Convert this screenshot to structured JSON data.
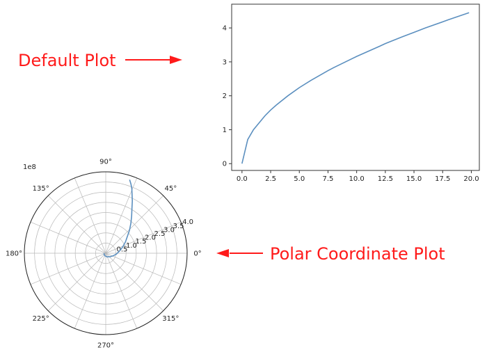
{
  "annotations": {
    "default_label": "Default Plot",
    "polar_label": "Polar Coordinate Plot",
    "arrow_color": "#ff1a1a"
  },
  "chart_data": [
    {
      "type": "line",
      "panel": "default",
      "color": "#5b8fbf",
      "x": [
        0,
        0.5,
        1,
        2,
        2.5,
        3,
        4,
        5,
        6,
        7.5,
        8,
        10,
        12,
        12.5,
        14,
        15,
        16,
        17.5,
        18,
        19.8
      ],
      "y": [
        0,
        0.71,
        1.0,
        1.41,
        1.58,
        1.73,
        2.0,
        2.24,
        2.45,
        2.74,
        2.83,
        3.16,
        3.46,
        3.54,
        3.74,
        3.87,
        4.0,
        4.18,
        4.24,
        4.45
      ],
      "xlim": [
        -0.9,
        20.7
      ],
      "ylim": [
        -0.2,
        4.7
      ],
      "xticks": [
        "0.0",
        "2.5",
        "5.0",
        "7.5",
        "10.0",
        "12.5",
        "15.0",
        "17.5",
        "20.0"
      ],
      "yticks": [
        "0",
        "1",
        "2",
        "3",
        "4"
      ]
    },
    {
      "type": "line",
      "panel": "polar",
      "color": "#5b8fbf",
      "offset_label": "1e8",
      "rmax": 4.0,
      "r_ticks": [
        "0.5",
        "1.0",
        "1.5",
        "2.0",
        "2.5",
        "3.0",
        "3.5",
        "4.0"
      ],
      "theta_ticks": [
        "0°",
        "45°",
        "90°",
        "135°",
        "180°",
        "225°",
        "270°",
        "315°"
      ],
      "theta_deg": [
        180,
        200,
        230,
        260,
        290,
        320,
        340,
        355,
        10,
        20,
        30,
        38,
        44,
        50,
        55,
        60,
        63,
        66,
        68,
        70,
        72
      ],
      "r": [
        0.08,
        0.09,
        0.11,
        0.14,
        0.19,
        0.27,
        0.38,
        0.52,
        0.7,
        0.88,
        1.12,
        1.35,
        1.62,
        1.92,
        2.22,
        2.58,
        2.88,
        3.18,
        3.42,
        3.62,
        3.8
      ]
    }
  ]
}
